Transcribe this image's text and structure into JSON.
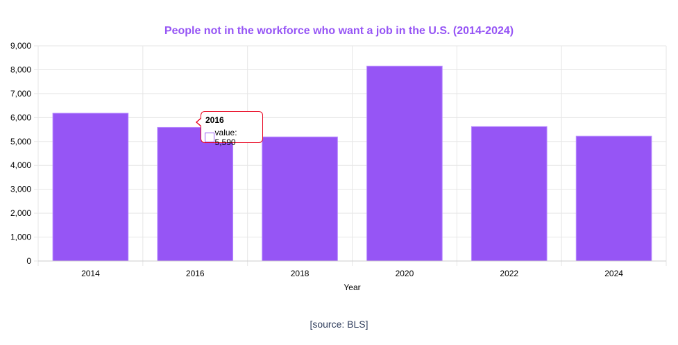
{
  "chart_data": {
    "type": "bar",
    "title": "People not in the workforce who want a job in the U.S. (2014-2024)",
    "xlabel": "Year",
    "ylabel": "",
    "categories": [
      "2014",
      "2016",
      "2018",
      "2020",
      "2022",
      "2024"
    ],
    "values": [
      6180,
      5590,
      5190,
      8150,
      5620,
      5220
    ],
    "ylim": [
      0,
      9000
    ],
    "yticks": [
      0,
      1000,
      2000,
      3000,
      4000,
      5000,
      6000,
      7000,
      8000,
      9000
    ],
    "ytick_labels": [
      "0",
      "1,000",
      "2,000",
      "3,000",
      "4,000",
      "5,000",
      "6,000",
      "7,000",
      "8,000",
      "9,000"
    ],
    "grid": true,
    "bar_color": "#9655f5",
    "title_color": "#9655f5"
  },
  "tooltip": {
    "category": "2016",
    "text": "value: 5,590",
    "border_color": "#e8001c"
  },
  "source": "[source: BLS]"
}
